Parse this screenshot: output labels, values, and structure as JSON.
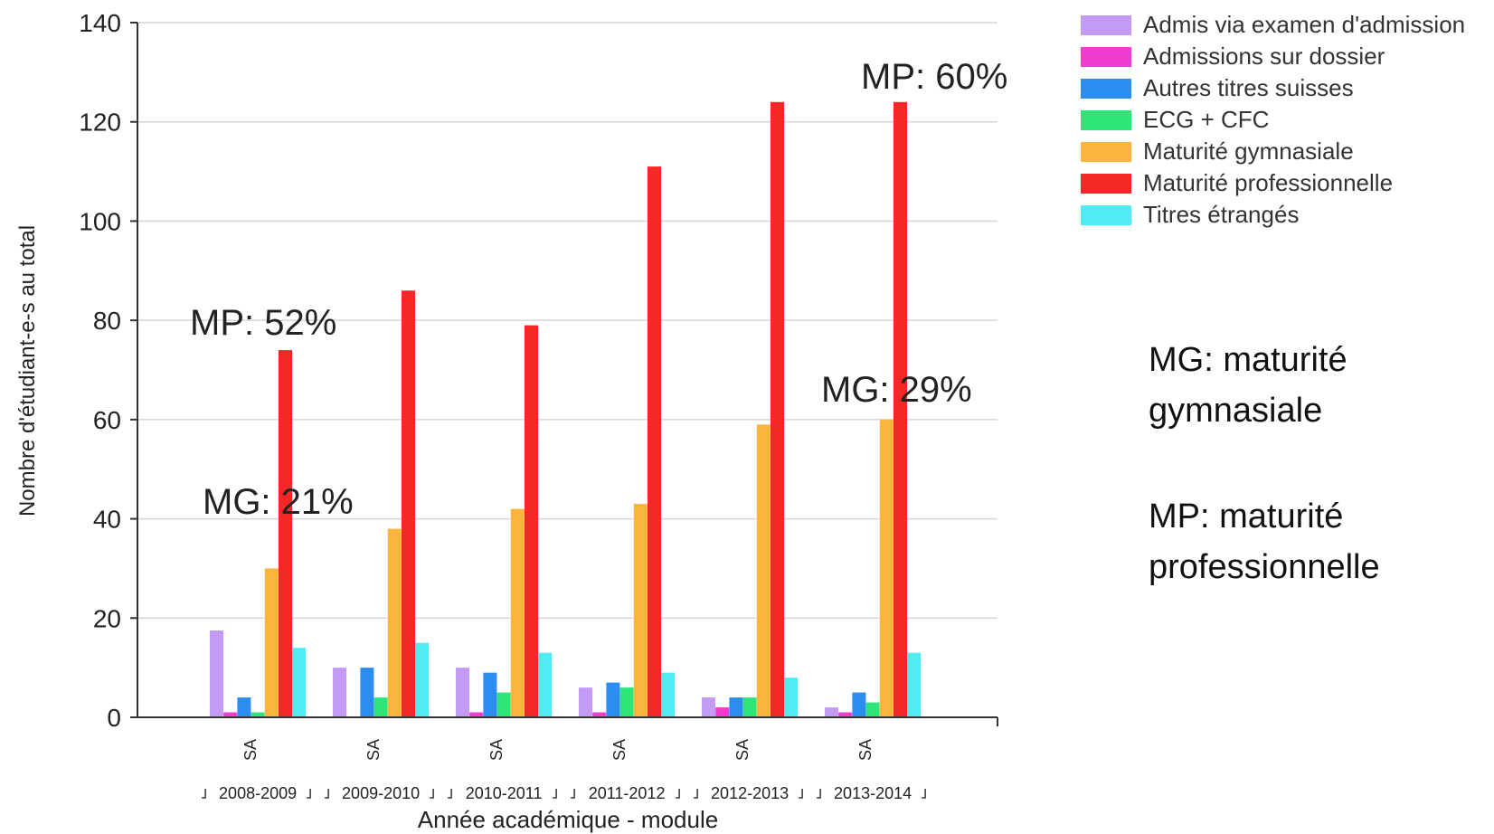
{
  "chart_data": {
    "type": "bar",
    "ylabel": "Nombre d'étudiant-e-s au total",
    "xlabel": "Année académique - module",
    "ylim": [
      0,
      140
    ],
    "yticks": [
      0,
      20,
      40,
      60,
      80,
      100,
      120,
      140
    ],
    "module_label": "SA",
    "categories": [
      "2008-2009",
      "2009-2010",
      "2010-2011",
      "2011-2012",
      "2012-2013",
      "2013-2014"
    ],
    "grid": true,
    "legend_position": "right",
    "series": [
      {
        "name": "Admis via examen d'admission",
        "color": "#c39bf5",
        "values": [
          17.5,
          10,
          10,
          6,
          4,
          2
        ]
      },
      {
        "name": "Admissions sur dossier",
        "color": "#f03ccf",
        "values": [
          1,
          0,
          1,
          1,
          2,
          1
        ]
      },
      {
        "name": "Autres titres suisses",
        "color": "#2d8cf0",
        "values": [
          4,
          10,
          9,
          7,
          4,
          5
        ]
      },
      {
        "name": "ECG + CFC",
        "color": "#2ee57a",
        "values": [
          1,
          4,
          5,
          6,
          4,
          3
        ]
      },
      {
        "name": "Maturité gymnasiale",
        "color": "#fbb43c",
        "values": [
          30,
          38,
          42,
          43,
          59,
          60
        ]
      },
      {
        "name": "Maturité professionnelle",
        "color": "#f52828",
        "values": [
          74,
          86,
          79,
          111,
          124,
          124
        ]
      },
      {
        "name": "Titres étrangés",
        "color": "#4fecf5",
        "values": [
          14,
          15,
          13,
          9,
          8,
          13
        ]
      }
    ],
    "annotations": [
      {
        "text": "MP: 52%",
        "category": "2008-2009"
      },
      {
        "text": "MG: 21%",
        "category": "2008-2009"
      },
      {
        "text": "MP: 60%",
        "category": "2013-2014"
      },
      {
        "text": "MG: 29%",
        "category": "2013-2014"
      }
    ]
  },
  "notes": [
    {
      "term": "MG: maturité",
      "definition": "gymnasiale"
    },
    {
      "term": "MP: maturité",
      "definition": "professionnelle"
    }
  ]
}
